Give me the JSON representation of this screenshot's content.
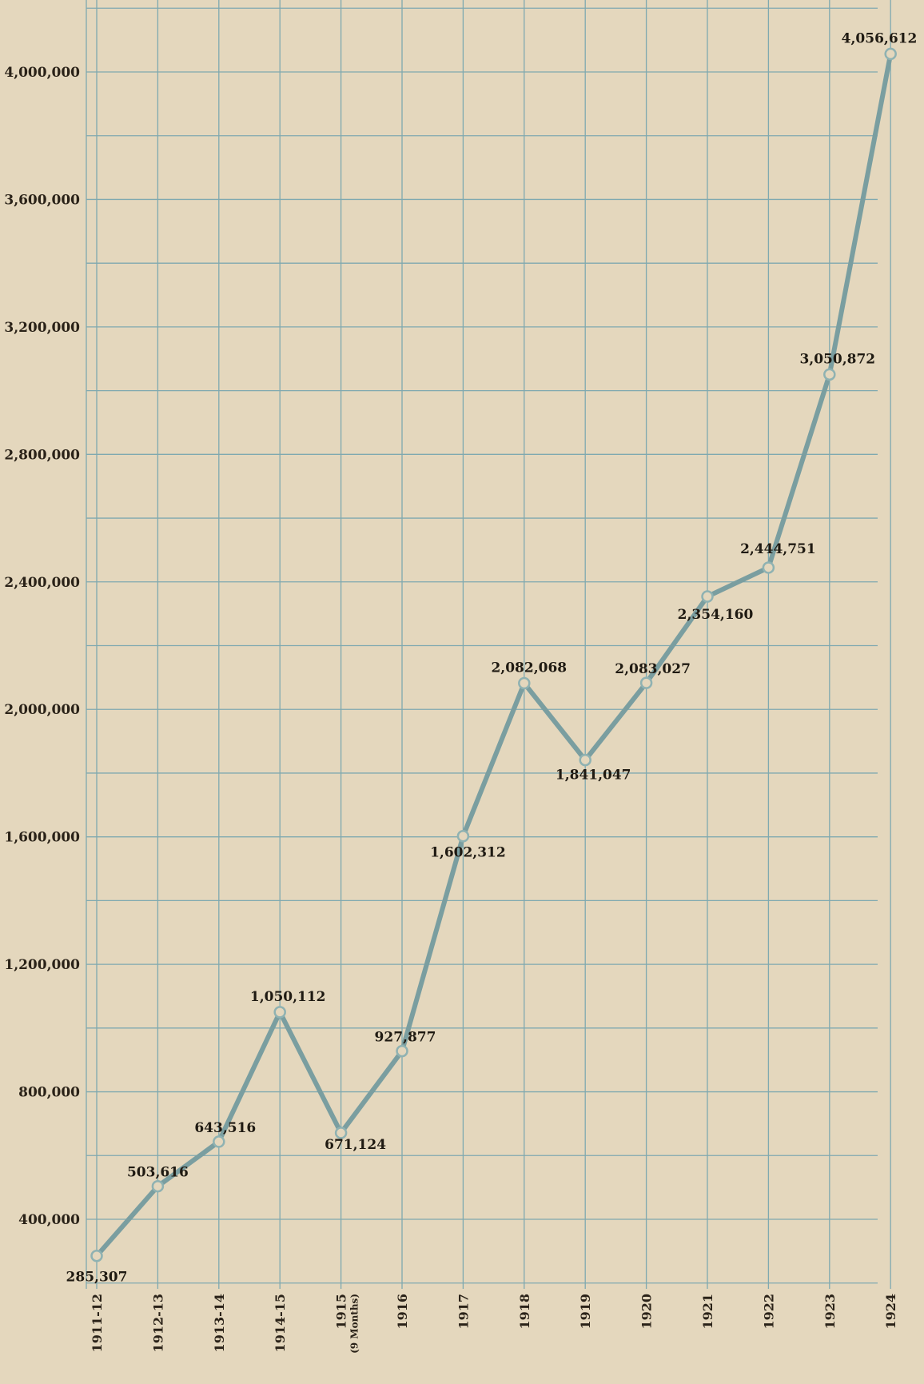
{
  "chart_data": {
    "type": "line",
    "categories": [
      "1911-12",
      "1912-13",
      "1913-14",
      "1914-15",
      "1915",
      "1916",
      "1917",
      "1918",
      "1919",
      "1920",
      "1921",
      "1922",
      "1923",
      "1924"
    ],
    "category_sublabels": [
      "",
      "",
      "",
      "",
      "(9 Months)",
      "",
      "",
      "",
      "",
      "",
      "",
      "",
      "",
      ""
    ],
    "series": [
      {
        "values": [
          285307,
          503616,
          643516,
          1050112,
          671124,
          927877,
          1602312,
          2082068,
          1841047,
          2083027,
          2354160,
          2444751,
          3050872,
          4056612
        ],
        "labels": [
          "285,307",
          "503,616",
          "643,516",
          "1,050,112",
          "671,124",
          "927,877",
          "1,602,312",
          "2,082,068",
          "1,841,047",
          "2,083,027",
          "2,354,160",
          "2,444,751",
          "3,050,872",
          "4,056,612"
        ]
      }
    ],
    "y_tick_values": [
      400000,
      800000,
      1200000,
      1600000,
      2000000,
      2400000,
      2800000,
      3200000,
      3600000,
      4000000
    ],
    "y_tick_labels": [
      "400,000",
      "800,000",
      "1,200,000",
      "1,600,000",
      "2,000,000",
      "2,400,000",
      "2,800,000",
      "3,200,000",
      "3,600,000",
      "4,000,000"
    ],
    "ylim": [
      200000,
      4200000
    ],
    "grid": true,
    "legend": "none",
    "line_color": "#7a9ea0",
    "grid_color": "#7fa9b0",
    "background_color": "#e4d7bd"
  }
}
